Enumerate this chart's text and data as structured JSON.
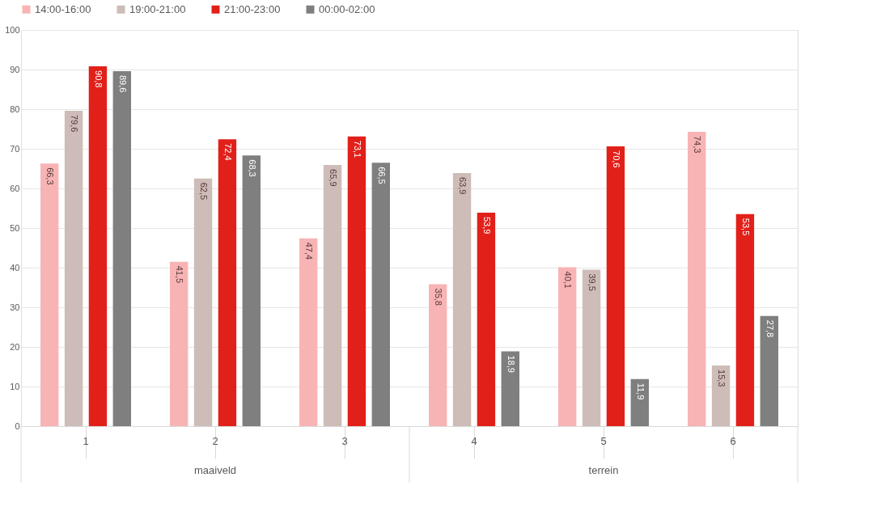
{
  "chart_data": {
    "type": "bar",
    "categories": [
      "1",
      "2",
      "3",
      "4",
      "5",
      "6"
    ],
    "series": [
      {
        "name": "14:00-16:00",
        "color": "#f8b4b4",
        "values": [
          66.3,
          41.5,
          47.4,
          35.8,
          40.1,
          74.3
        ],
        "value_labels": [
          "66,3",
          "41,5",
          "47,4",
          "35,8",
          "40,1",
          "74,3"
        ]
      },
      {
        "name": "19:00-21:00",
        "color": "#cdbcb8",
        "values": [
          79.6,
          62.5,
          65.9,
          63.9,
          39.5,
          15.3
        ],
        "value_labels": [
          "79,6",
          "62,5",
          "65,9",
          "63,9",
          "39,5",
          "15,3"
        ]
      },
      {
        "name": "21:00-23:00",
        "color": "#e2201a",
        "values": [
          90.8,
          72.4,
          73.1,
          53.9,
          70.6,
          53.5
        ],
        "value_labels": [
          "90,8",
          "72,4",
          "73,1",
          "53,9",
          "70,6",
          "53,5"
        ]
      },
      {
        "name": "00:00-02:00",
        "color": "#7f7f7f",
        "values": [
          89.6,
          68.3,
          66.5,
          18.9,
          11.9,
          27.8
        ],
        "value_labels": [
          "89,6",
          "68,3",
          "66,5",
          "18,9",
          "11,9",
          "27,8"
        ]
      }
    ],
    "annotations": [
      "maaiveld",
      "terrein"
    ],
    "ylim": [
      0,
      100
    ],
    "yticks": [
      0,
      10,
      20,
      30,
      40,
      50,
      60,
      70,
      80,
      90,
      100
    ],
    "grid": "y",
    "legend": "top"
  }
}
